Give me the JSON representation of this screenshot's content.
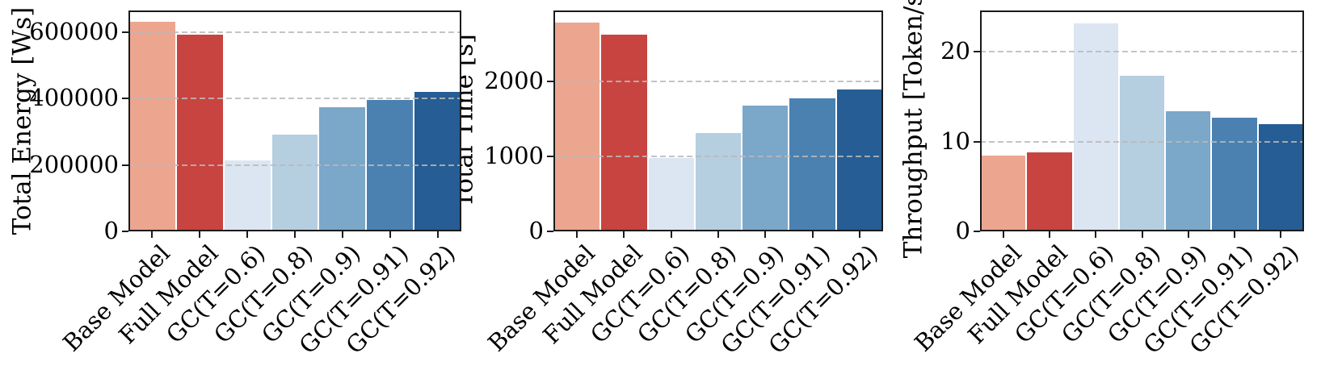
{
  "figure": {
    "background": "#ffffff",
    "text_color": "#000000",
    "spine_color": "#1a1a1a",
    "grid_color": "#b9b9b9",
    "bar_colors": [
      "#ECA690",
      "#C84440",
      "#DCE6F2",
      "#B5CEE0",
      "#7BA7C9",
      "#4A81B1",
      "#265D94"
    ]
  },
  "chart_data": [
    {
      "type": "bar",
      "ylabel": "Total Energy [Ws]",
      "xlabel": "",
      "title": "",
      "categories": [
        "Base Model",
        "Full Model",
        "GC(T=0.6)",
        "GC(T=0.8)",
        "GC(T=0.9)",
        "GC(T=0.91)",
        "GC(T=0.92)"
      ],
      "values": [
        630000,
        593000,
        214000,
        291000,
        373000,
        395000,
        421000
      ],
      "yticks": [
        0,
        200000,
        400000,
        600000
      ],
      "ylim": [
        0,
        665000
      ],
      "grid": "horizontal-dashed",
      "legend": "none"
    },
    {
      "type": "bar",
      "ylabel": "Total Time [s]",
      "xlabel": "",
      "title": "",
      "categories": [
        "Base Model",
        "Full Model",
        "GC(T=0.6)",
        "GC(T=0.8)",
        "GC(T=0.9)",
        "GC(T=0.91)",
        "GC(T=0.92)"
      ],
      "values": [
        2790,
        2630,
        975,
        1310,
        1680,
        1780,
        1890
      ],
      "yticks": [
        0,
        1000,
        2000
      ],
      "ylim": [
        0,
        2950
      ],
      "grid": "horizontal-dashed",
      "legend": "none"
    },
    {
      "type": "bar",
      "ylabel": "Throughput [Token/s]",
      "xlabel": "",
      "title": "",
      "categories": [
        "Base Model",
        "Full Model",
        "GC(T=0.6)",
        "GC(T=0.8)",
        "GC(T=0.9)",
        "GC(T=0.91)",
        "GC(T=0.92)"
      ],
      "values": [
        8.4,
        8.8,
        23.2,
        17.3,
        13.4,
        12.7,
        11.9
      ],
      "yticks": [
        0,
        10,
        20
      ],
      "ylim": [
        0,
        24.6
      ],
      "grid": "horizontal-dashed",
      "legend": "none"
    }
  ]
}
